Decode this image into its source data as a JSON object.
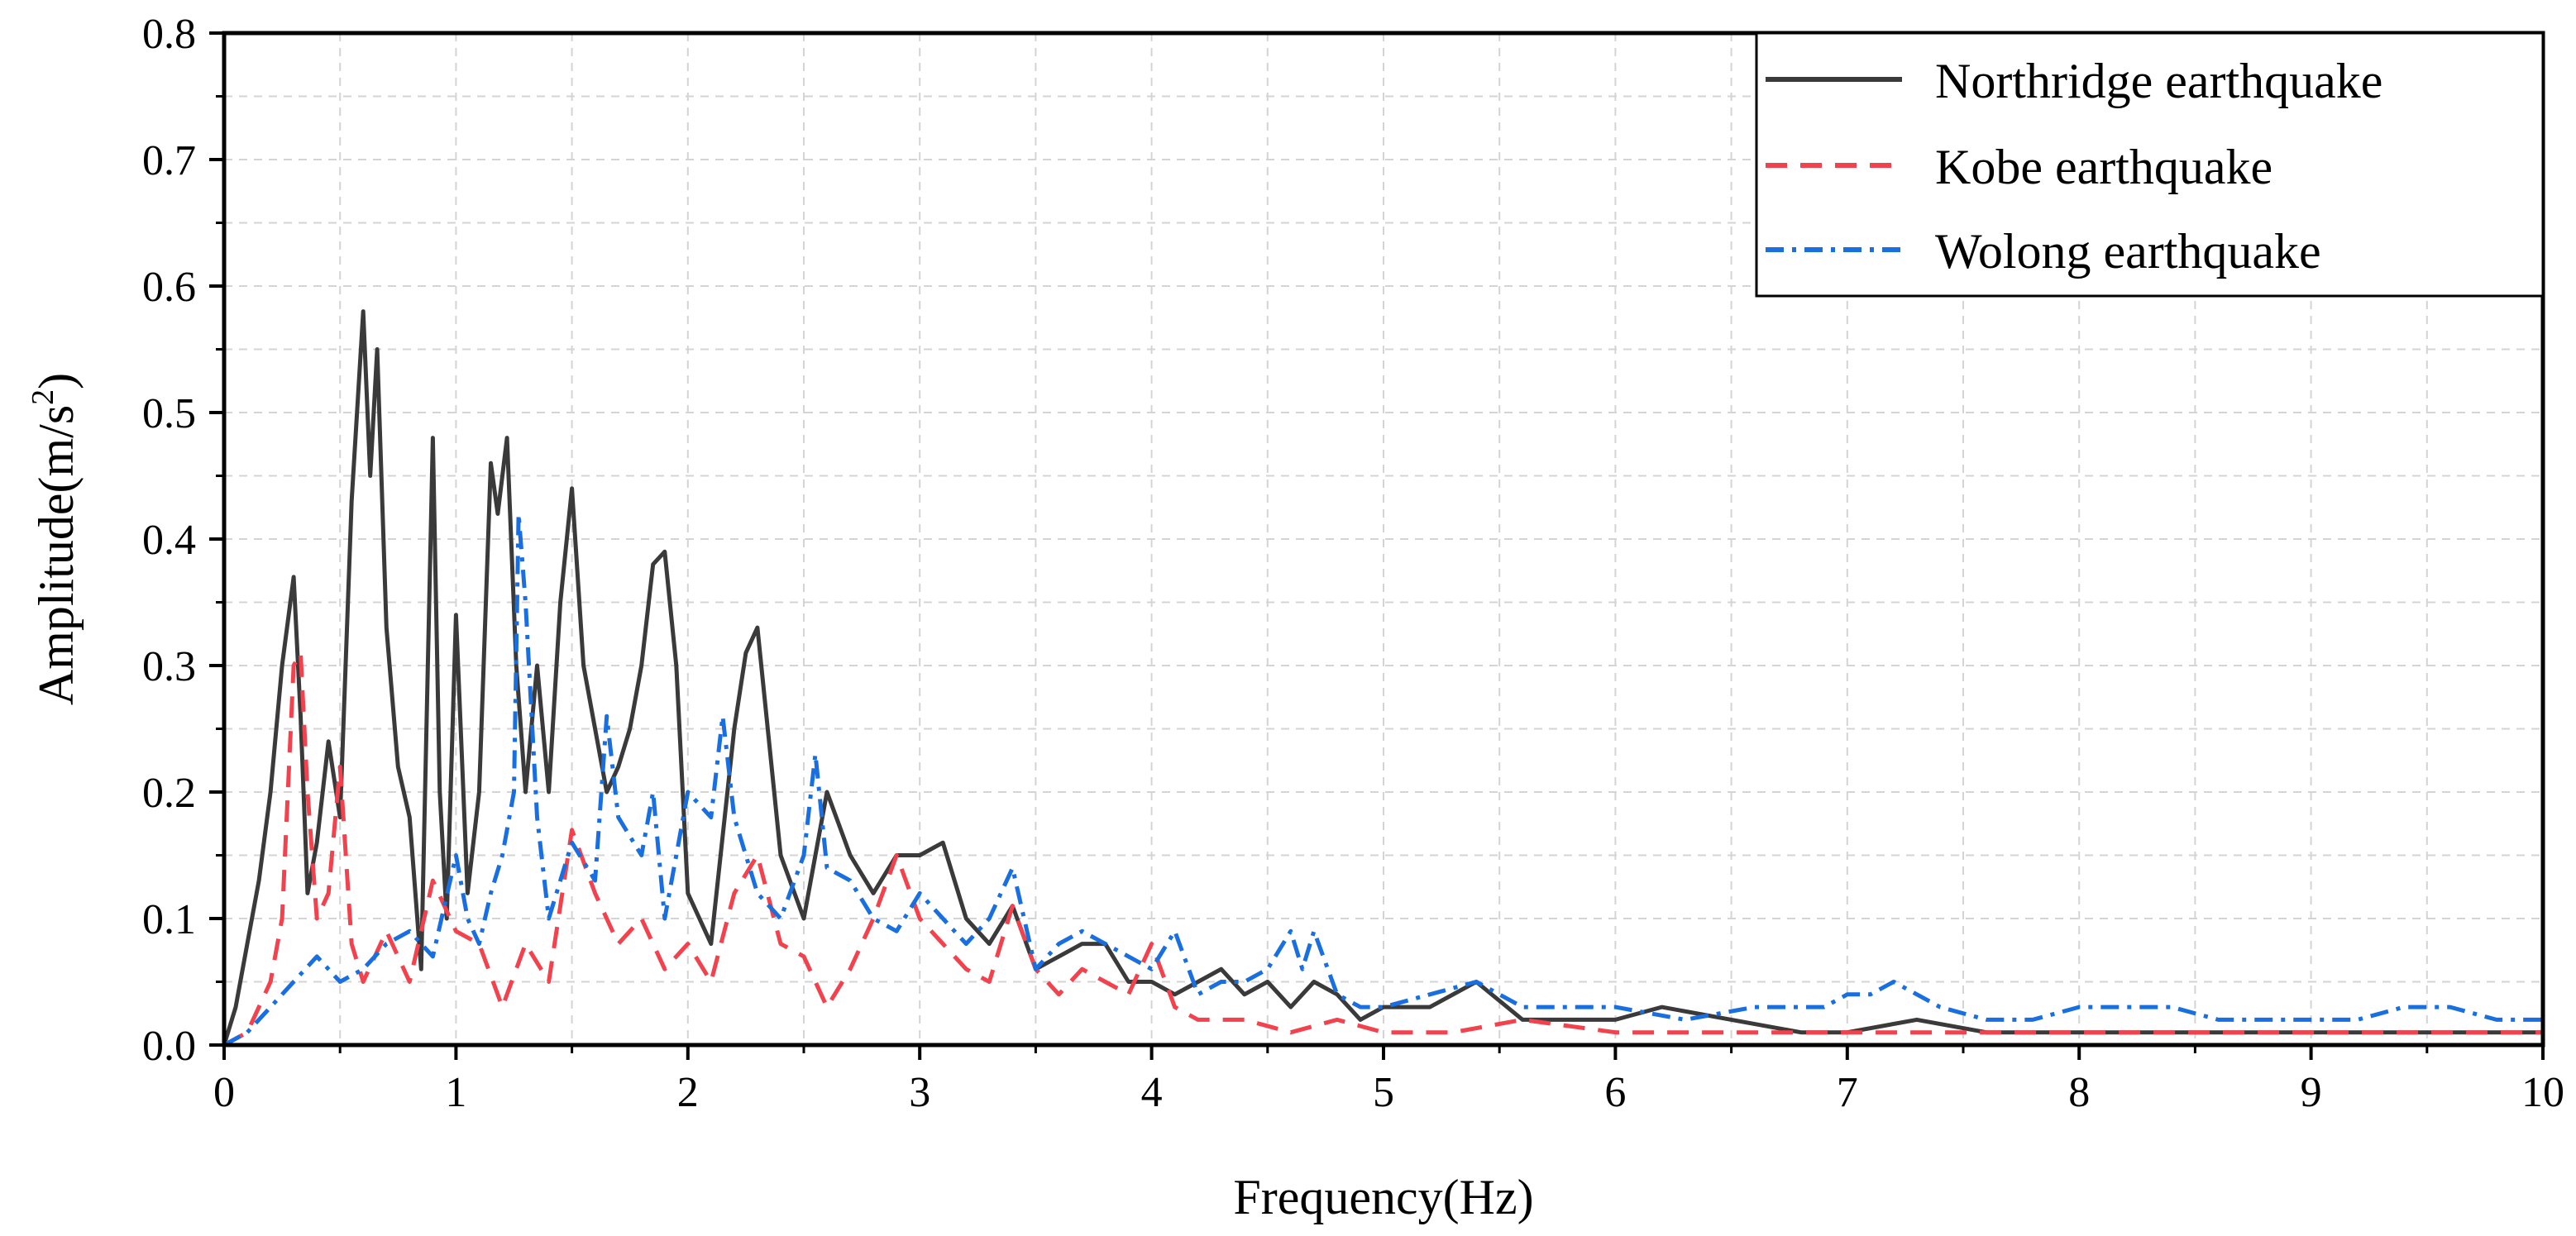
{
  "chart_data": {
    "type": "line",
    "title": "",
    "xlabel": "Frequency(Hz)",
    "ylabel_main": "Amplitude(m/s",
    "ylabel_sup": "2",
    "ylabel_close": ")",
    "xlim": [
      0,
      10
    ],
    "ylim": [
      0,
      0.8
    ],
    "xticks": [
      0,
      1,
      2,
      3,
      4,
      5,
      6,
      7,
      8,
      9,
      10
    ],
    "xtick_labels": [
      "0",
      "1",
      "2",
      "3",
      "4",
      "5",
      "6",
      "7",
      "8",
      "9",
      "10"
    ],
    "yticks": [
      0,
      0.1,
      0.2,
      0.3,
      0.4,
      0.5,
      0.6,
      0.7,
      0.8
    ],
    "ytick_labels": [
      "0.0",
      "0.1",
      "0.2",
      "0.3",
      "0.4",
      "0.5",
      "0.6",
      "0.7",
      "0.8"
    ],
    "grid": true,
    "legend_position": "top-right",
    "series": [
      {
        "name": "Northridge earthquake",
        "color": "#3a3a3a",
        "style": "solid",
        "x": [
          0.0,
          0.05,
          0.1,
          0.15,
          0.2,
          0.25,
          0.3,
          0.33,
          0.36,
          0.4,
          0.45,
          0.5,
          0.55,
          0.6,
          0.63,
          0.66,
          0.7,
          0.75,
          0.8,
          0.85,
          0.9,
          0.93,
          0.96,
          1.0,
          1.05,
          1.1,
          1.15,
          1.18,
          1.22,
          1.26,
          1.3,
          1.35,
          1.4,
          1.45,
          1.5,
          1.55,
          1.6,
          1.65,
          1.7,
          1.75,
          1.8,
          1.85,
          1.9,
          1.95,
          2.0,
          2.1,
          2.2,
          2.25,
          2.3,
          2.4,
          2.5,
          2.55,
          2.6,
          2.7,
          2.8,
          2.9,
          3.0,
          3.1,
          3.2,
          3.3,
          3.4,
          3.5,
          3.6,
          3.7,
          3.8,
          3.9,
          4.0,
          4.1,
          4.2,
          4.3,
          4.4,
          4.5,
          4.6,
          4.7,
          4.8,
          4.9,
          5.0,
          5.2,
          5.4,
          5.6,
          5.8,
          6.0,
          6.2,
          6.5,
          6.8,
          7.0,
          7.3,
          7.6,
          8.0,
          8.3,
          8.6,
          9.0,
          9.3,
          9.6,
          10.0
        ],
        "y": [
          0.0,
          0.03,
          0.08,
          0.13,
          0.2,
          0.3,
          0.37,
          0.26,
          0.12,
          0.16,
          0.24,
          0.18,
          0.43,
          0.58,
          0.45,
          0.55,
          0.33,
          0.22,
          0.18,
          0.06,
          0.48,
          0.2,
          0.1,
          0.34,
          0.12,
          0.2,
          0.46,
          0.42,
          0.48,
          0.3,
          0.2,
          0.3,
          0.2,
          0.35,
          0.44,
          0.3,
          0.25,
          0.2,
          0.22,
          0.25,
          0.3,
          0.38,
          0.39,
          0.3,
          0.12,
          0.08,
          0.25,
          0.31,
          0.33,
          0.15,
          0.1,
          0.15,
          0.2,
          0.15,
          0.12,
          0.15,
          0.15,
          0.16,
          0.1,
          0.08,
          0.11,
          0.06,
          0.07,
          0.08,
          0.08,
          0.05,
          0.05,
          0.04,
          0.05,
          0.06,
          0.04,
          0.05,
          0.03,
          0.05,
          0.04,
          0.02,
          0.03,
          0.03,
          0.05,
          0.02,
          0.02,
          0.02,
          0.03,
          0.02,
          0.01,
          0.01,
          0.02,
          0.01,
          0.01,
          0.01,
          0.01,
          0.01,
          0.01,
          0.01,
          0.01
        ]
      },
      {
        "name": "Kobe earthquake",
        "color": "#f2424d",
        "style": "dashed",
        "x": [
          0.0,
          0.1,
          0.2,
          0.25,
          0.3,
          0.33,
          0.36,
          0.4,
          0.45,
          0.5,
          0.55,
          0.6,
          0.7,
          0.8,
          0.9,
          1.0,
          1.1,
          1.2,
          1.3,
          1.4,
          1.5,
          1.6,
          1.7,
          1.8,
          1.9,
          2.0,
          2.1,
          2.2,
          2.3,
          2.4,
          2.5,
          2.6,
          2.7,
          2.8,
          2.9,
          3.0,
          3.1,
          3.2,
          3.3,
          3.4,
          3.5,
          3.6,
          3.7,
          3.8,
          3.9,
          4.0,
          4.1,
          4.2,
          4.4,
          4.6,
          4.8,
          5.0,
          5.3,
          5.6,
          6.0,
          6.5,
          7.0,
          7.5,
          8.0,
          8.5,
          9.0,
          9.5,
          10.0
        ],
        "y": [
          0.0,
          0.01,
          0.05,
          0.1,
          0.3,
          0.31,
          0.2,
          0.1,
          0.12,
          0.22,
          0.08,
          0.05,
          0.09,
          0.05,
          0.13,
          0.09,
          0.08,
          0.03,
          0.08,
          0.05,
          0.17,
          0.12,
          0.08,
          0.1,
          0.06,
          0.08,
          0.05,
          0.12,
          0.15,
          0.08,
          0.07,
          0.03,
          0.06,
          0.1,
          0.15,
          0.1,
          0.08,
          0.06,
          0.05,
          0.11,
          0.06,
          0.04,
          0.06,
          0.05,
          0.04,
          0.08,
          0.03,
          0.02,
          0.02,
          0.01,
          0.02,
          0.01,
          0.01,
          0.02,
          0.01,
          0.01,
          0.01,
          0.01,
          0.01,
          0.01,
          0.01,
          0.01,
          0.01
        ]
      },
      {
        "name": "Wolong earthquake",
        "color": "#1a6fe0",
        "style": "dashdot",
        "x": [
          0.0,
          0.1,
          0.2,
          0.3,
          0.4,
          0.5,
          0.6,
          0.7,
          0.8,
          0.9,
          1.0,
          1.05,
          1.1,
          1.15,
          1.2,
          1.25,
          1.27,
          1.3,
          1.35,
          1.4,
          1.5,
          1.6,
          1.65,
          1.7,
          1.8,
          1.85,
          1.9,
          2.0,
          2.1,
          2.15,
          2.2,
          2.3,
          2.4,
          2.5,
          2.55,
          2.6,
          2.7,
          2.8,
          2.9,
          3.0,
          3.1,
          3.2,
          3.3,
          3.4,
          3.5,
          3.6,
          3.7,
          3.8,
          3.9,
          4.0,
          4.1,
          4.2,
          4.3,
          4.4,
          4.5,
          4.6,
          4.65,
          4.7,
          4.8,
          4.9,
          5.0,
          5.2,
          5.4,
          5.6,
          5.8,
          6.0,
          6.3,
          6.6,
          6.9,
          7.0,
          7.1,
          7.2,
          7.4,
          7.6,
          7.8,
          8.0,
          8.2,
          8.4,
          8.6,
          8.8,
          9.0,
          9.2,
          9.4,
          9.6,
          9.8,
          10.0
        ],
        "y": [
          0.0,
          0.01,
          0.03,
          0.05,
          0.07,
          0.05,
          0.06,
          0.08,
          0.09,
          0.07,
          0.15,
          0.1,
          0.08,
          0.12,
          0.15,
          0.2,
          0.42,
          0.35,
          0.18,
          0.1,
          0.16,
          0.13,
          0.26,
          0.18,
          0.15,
          0.2,
          0.1,
          0.2,
          0.18,
          0.26,
          0.18,
          0.12,
          0.1,
          0.15,
          0.23,
          0.14,
          0.13,
          0.1,
          0.09,
          0.12,
          0.1,
          0.08,
          0.1,
          0.14,
          0.06,
          0.08,
          0.09,
          0.08,
          0.07,
          0.06,
          0.09,
          0.04,
          0.05,
          0.05,
          0.06,
          0.09,
          0.06,
          0.09,
          0.04,
          0.03,
          0.03,
          0.04,
          0.05,
          0.03,
          0.03,
          0.03,
          0.02,
          0.03,
          0.03,
          0.04,
          0.04,
          0.05,
          0.03,
          0.02,
          0.02,
          0.03,
          0.03,
          0.03,
          0.02,
          0.02,
          0.02,
          0.02,
          0.03,
          0.03,
          0.02,
          0.02
        ]
      }
    ]
  }
}
